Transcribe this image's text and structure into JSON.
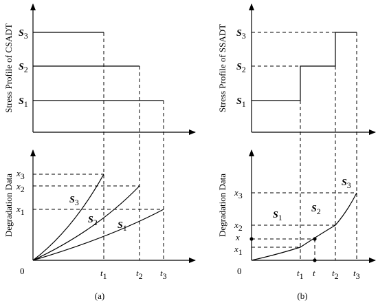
{
  "panel_a": {
    "top_ylabel": "Stress Profile of CSADT",
    "bottom_ylabel": "Degradation Data",
    "stress_labels": [
      {
        "base": "S",
        "sub": "3"
      },
      {
        "base": "S",
        "sub": "2"
      },
      {
        "base": "S",
        "sub": "1"
      }
    ],
    "x_ticks": [
      {
        "base": "t",
        "sub": "1"
      },
      {
        "base": "t",
        "sub": "2"
      },
      {
        "base": "t",
        "sub": "3"
      }
    ],
    "y_ticks": [
      {
        "base": "x",
        "sub": "3"
      },
      {
        "base": "x",
        "sub": "2"
      },
      {
        "base": "x",
        "sub": "1"
      }
    ],
    "curve_labels": [
      {
        "base": "S",
        "sub": "3"
      },
      {
        "base": "S",
        "sub": "2"
      },
      {
        "base": "S",
        "sub": "1"
      }
    ],
    "origin": "0",
    "caption": "(a)"
  },
  "panel_b": {
    "top_ylabel": "Stress Profile of SSADT",
    "bottom_ylabel": "Degradation Data",
    "stress_labels": [
      {
        "base": "S",
        "sub": "3"
      },
      {
        "base": "S",
        "sub": "2"
      },
      {
        "base": "S",
        "sub": "1"
      }
    ],
    "x_ticks": [
      {
        "base": "t",
        "sub": "1"
      },
      {
        "base": "t",
        "sub": ""
      },
      {
        "base": "t",
        "sub": "2"
      },
      {
        "base": "t",
        "sub": "3"
      }
    ],
    "y_ticks": [
      {
        "base": "x",
        "sub": "3"
      },
      {
        "base": "x",
        "sub": "2"
      },
      {
        "base": "x",
        "sub": ""
      },
      {
        "base": "x",
        "sub": "1"
      }
    ],
    "region_labels": [
      {
        "base": "S",
        "sub": "1"
      },
      {
        "base": "S",
        "sub": "2"
      },
      {
        "base": "S",
        "sub": "3"
      }
    ],
    "origin": "0",
    "caption": "(b)"
  }
}
